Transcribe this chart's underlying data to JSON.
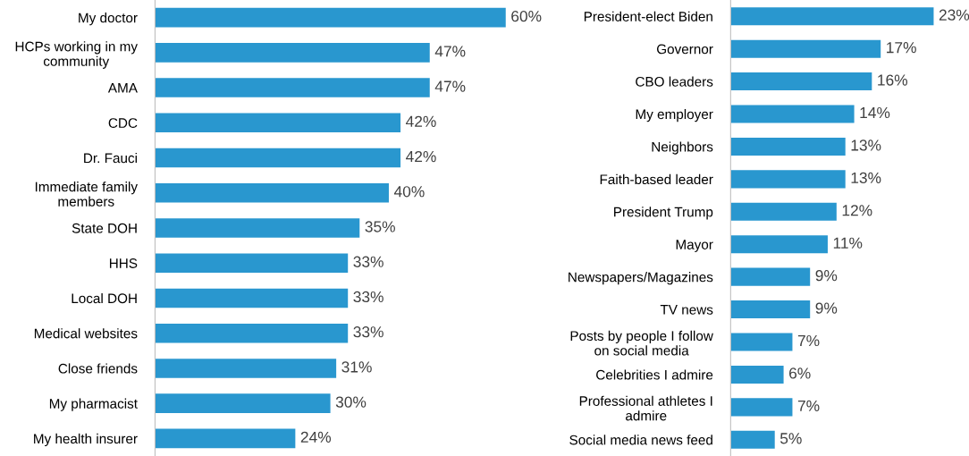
{
  "chart_data": [
    {
      "type": "bar",
      "orientation": "horizontal",
      "categories": [
        "My doctor",
        "HCPs working in my\ncommunity",
        "AMA",
        "CDC",
        "Dr. Fauci",
        "Immediate family\nmembers",
        "State DOH",
        "HHS",
        "Local DOH",
        "Medical websites",
        "Close friends",
        "My pharmacist",
        "My health insurer"
      ],
      "values": [
        60,
        47,
        47,
        42,
        42,
        40,
        35,
        33,
        33,
        33,
        31,
        30,
        24
      ],
      "value_labels": [
        "60%",
        "47%",
        "47%",
        "42%",
        "42%",
        "40%",
        "35%",
        "33%",
        "33%",
        "33%",
        "31%",
        "30%",
        "24%"
      ],
      "color": "#2997cf",
      "tick_labels": "y",
      "grid": false,
      "legend": false
    },
    {
      "type": "bar",
      "orientation": "horizontal",
      "categories": [
        "President-elect Biden",
        "Governor",
        "CBO leaders",
        "My employer",
        "Neighbors",
        "Faith-based leader",
        "President Trump",
        "Mayor",
        "Newspapers/Magazines",
        "TV news",
        "Posts by people I follow\non social media",
        "Celebrities I admire",
        "Professional athletes I\nadmire",
        "Social media news feed"
      ],
      "values": [
        23,
        17,
        16,
        14,
        13,
        13,
        12,
        11,
        9,
        9,
        7,
        6,
        7,
        5
      ],
      "value_labels": [
        "23%",
        "17%",
        "16%",
        "14%",
        "13%",
        "13%",
        "12%",
        "11%",
        "9%",
        "9%",
        "7%",
        "6%",
        "7%",
        "5%"
      ],
      "color": "#2997cf",
      "tick_labels": "y",
      "grid": false,
      "legend": false
    }
  ]
}
